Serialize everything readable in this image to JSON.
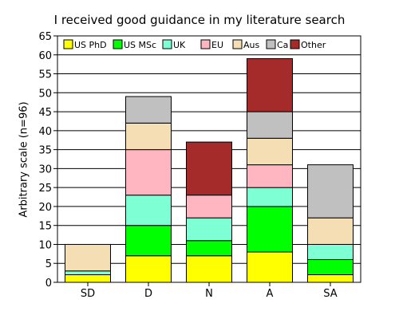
{
  "chart_data": {
    "type": "bar",
    "stacked": true,
    "title": "I received good guidance in my literature search",
    "xlabel": "",
    "ylabel": "Arbitrary scale (n=96)",
    "categories": [
      "SD",
      "D",
      "N",
      "A",
      "SA"
    ],
    "ylim": [
      0,
      65
    ],
    "yticks": [
      0,
      5,
      10,
      15,
      20,
      25,
      30,
      35,
      40,
      45,
      50,
      55,
      60,
      65
    ],
    "grid": true,
    "legend_placement": "top",
    "series": [
      {
        "name": "US PhD",
        "color": "#ffff00",
        "values": [
          2,
          7,
          7,
          8,
          2
        ]
      },
      {
        "name": "US MSc",
        "color": "#00ff00",
        "values": [
          0,
          8,
          4,
          12,
          4
        ]
      },
      {
        "name": "UK",
        "color": "#7fffd4",
        "values": [
          1,
          8,
          6,
          5,
          4
        ]
      },
      {
        "name": "EU",
        "color": "#ffb6c1",
        "values": [
          0,
          12,
          6,
          6,
          0
        ]
      },
      {
        "name": "Aus",
        "color": "#f5deb3",
        "values": [
          7,
          7,
          0,
          7,
          7
        ]
      },
      {
        "name": "Ca",
        "color": "#c0c0c0",
        "values": [
          0,
          7,
          0,
          7,
          14
        ]
      },
      {
        "name": "Other",
        "color": "#a52a2a",
        "values": [
          0,
          0,
          14,
          14,
          0
        ]
      }
    ]
  }
}
